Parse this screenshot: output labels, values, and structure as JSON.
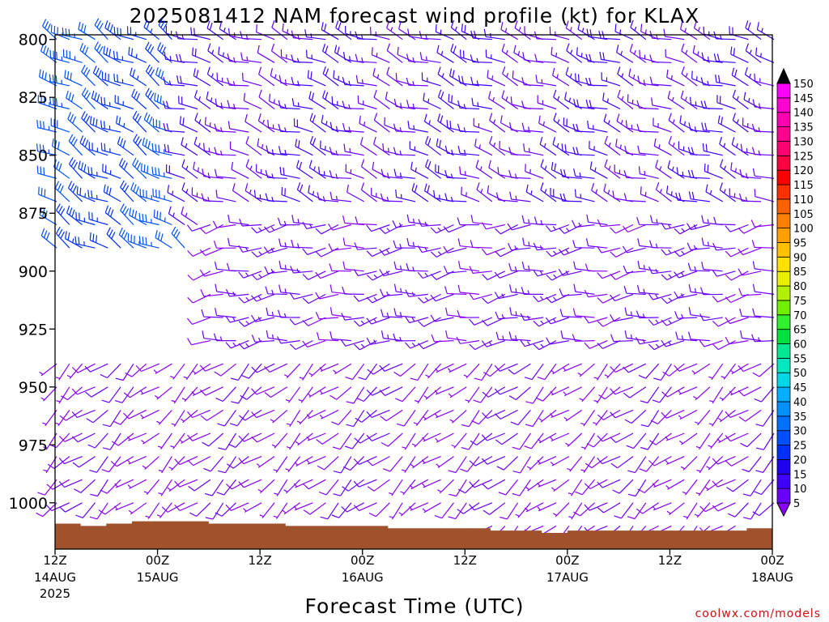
{
  "chart_data": {
    "type": "wind_barb_time_height",
    "title": "2025081412 NAM forecast wind profile (kt) for KLAX",
    "xlabel": "Forecast Time (UTC)",
    "ylabel": "",
    "credit": "coolwx.com/models",
    "x_ticks": [
      {
        "hour": 0,
        "label": "12Z",
        "sub": "14AUG",
        "sub2": "2025"
      },
      {
        "hour": 12,
        "label": "00Z",
        "sub": "15AUG",
        "sub2": ""
      },
      {
        "hour": 24,
        "label": "12Z",
        "sub": "",
        "sub2": ""
      },
      {
        "hour": 36,
        "label": "00Z",
        "sub": "16AUG",
        "sub2": ""
      },
      {
        "hour": 48,
        "label": "12Z",
        "sub": "",
        "sub2": ""
      },
      {
        "hour": 60,
        "label": "00Z",
        "sub": "17AUG",
        "sub2": ""
      },
      {
        "hour": 72,
        "label": "12Z",
        "sub": "",
        "sub2": ""
      },
      {
        "hour": 84,
        "label": "00Z",
        "sub": "18AUG",
        "sub2": ""
      }
    ],
    "x_range_hours": [
      0,
      84
    ],
    "y_ticks": [
      800,
      825,
      850,
      875,
      900,
      925,
      950,
      975,
      1000
    ],
    "y_range_hpa": [
      798,
      1020
    ],
    "pressure_levels": [
      800,
      810,
      820,
      830,
      840,
      850,
      860,
      870,
      880,
      890,
      900,
      910,
      920,
      930,
      940,
      950,
      960,
      970,
      980,
      990,
      1000,
      1010
    ],
    "colorbar": {
      "levels": [
        5,
        10,
        15,
        20,
        25,
        30,
        35,
        40,
        45,
        50,
        55,
        60,
        65,
        70,
        75,
        80,
        85,
        90,
        95,
        100,
        105,
        110,
        115,
        120,
        125,
        130,
        135,
        140,
        145,
        150
      ],
      "colors": [
        "#8a00ff",
        "#6a00ff",
        "#4000ff",
        "#2000f0",
        "#0030ff",
        "#0050ff",
        "#0070ff",
        "#0090ff",
        "#00b0ff",
        "#00d8e8",
        "#00e8c0",
        "#00e890",
        "#00e040",
        "#30f030",
        "#70f000",
        "#b0f000",
        "#e8f000",
        "#ffe000",
        "#ffc000",
        "#ffa000",
        "#ff8000",
        "#ff6000",
        "#ff3000",
        "#ff0000",
        "#ff0040",
        "#ff0070",
        "#ff0090",
        "#ff00b0",
        "#ff00d0",
        "#ff00ff"
      ],
      "under_color": "#8a00ff",
      "over_color": "#000000"
    },
    "surface_pressure_hpa": [
      {
        "hour": 0,
        "p": 1009
      },
      {
        "hour": 3,
        "p": 1010
      },
      {
        "hour": 6,
        "p": 1009
      },
      {
        "hour": 9,
        "p": 1008
      },
      {
        "hour": 12,
        "p": 1008
      },
      {
        "hour": 15,
        "p": 1008
      },
      {
        "hour": 18,
        "p": 1009
      },
      {
        "hour": 21,
        "p": 1009
      },
      {
        "hour": 24,
        "p": 1009
      },
      {
        "hour": 27,
        "p": 1010
      },
      {
        "hour": 30,
        "p": 1010
      },
      {
        "hour": 33,
        "p": 1010
      },
      {
        "hour": 36,
        "p": 1010
      },
      {
        "hour": 39,
        "p": 1011
      },
      {
        "hour": 42,
        "p": 1011
      },
      {
        "hour": 45,
        "p": 1011
      },
      {
        "hour": 48,
        "p": 1011
      },
      {
        "hour": 51,
        "p": 1012
      },
      {
        "hour": 54,
        "p": 1012
      },
      {
        "hour": 57,
        "p": 1013
      },
      {
        "hour": 60,
        "p": 1012
      },
      {
        "hour": 63,
        "p": 1012
      },
      {
        "hour": 66,
        "p": 1012
      },
      {
        "hour": 69,
        "p": 1012
      },
      {
        "hour": 72,
        "p": 1012
      },
      {
        "hour": 75,
        "p": 1012
      },
      {
        "hour": 78,
        "p": 1012
      },
      {
        "hour": 81,
        "p": 1011
      },
      {
        "hour": 84,
        "p": 1010
      }
    ],
    "wind_regimes": [
      {
        "name": "NW_upper_strong",
        "hours": [
          0,
          15
        ],
        "p": [
          800,
          895
        ],
        "dir_deg": 300,
        "speed_kt": 30
      },
      {
        "name": "NW_upper_moderate",
        "hours": [
          15,
          84
        ],
        "p": [
          800,
          880
        ],
        "dir_deg": 290,
        "speed_kt": 15
      },
      {
        "name": "W_mid",
        "hours": [
          18,
          84
        ],
        "p": [
          880,
          940
        ],
        "dir_deg": 260,
        "speed_kt": 12
      },
      {
        "name": "SW_low",
        "hours": [
          0,
          84
        ],
        "p": [
          940,
          1012
        ],
        "dir_deg": 230,
        "speed_kt": 8
      }
    ]
  }
}
